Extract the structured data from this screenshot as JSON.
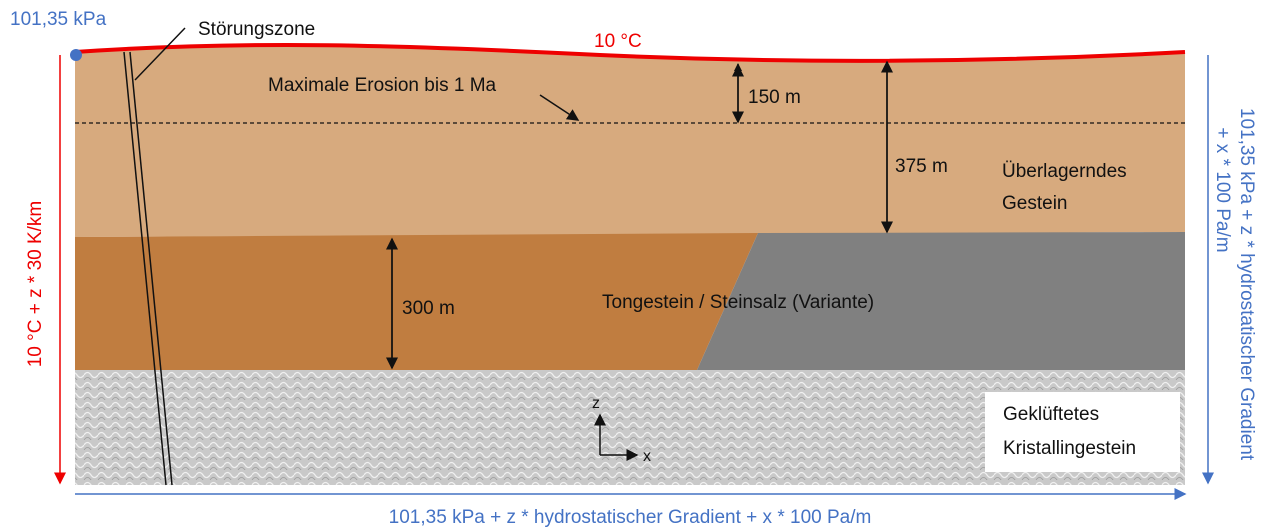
{
  "labels": {
    "top_pressure": "101,35 kPa",
    "fault": "Störungszone",
    "surface_temp": "10 °C",
    "erosion": "Maximale Erosion bis 1 Ma",
    "depth_erosion": "150 m",
    "depth_overburden": "375 m",
    "overburden": [
      "Überlagerndes",
      "Gestein"
    ],
    "host_thickness": "300 m",
    "host_rock": "Tongestein / Steinsalz (Variante)",
    "crystalline": [
      "Geklüftetes",
      "Kristallingestein"
    ],
    "axis_z": "z",
    "axis_x": "x",
    "left_boundary": "10 °C + z * 30 K/km",
    "right_boundary": [
      "101,35 kPa + z * hydrostatischer Gradient",
      "+ x * 100 Pa/m"
    ],
    "bottom_boundary": "101,35 kPa + z * hydrostatischer Gradient + x * 100 Pa/m"
  }
}
